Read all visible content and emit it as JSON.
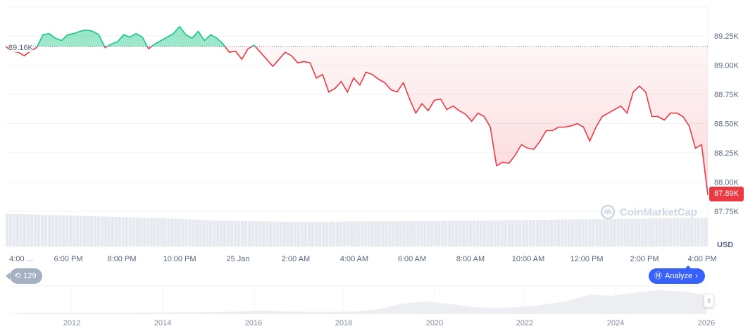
{
  "chart_data": {
    "type": "line",
    "currency": "USD",
    "baseline_label": "89.16K",
    "baseline": 89.16,
    "last_price_label": "87.89K",
    "y_unit": "K USD",
    "ylim": [
      87.65,
      89.45
    ],
    "y_ticks": [
      {
        "value": 89.25,
        "label": "89.25K"
      },
      {
        "value": 89.0,
        "label": "89.00K"
      },
      {
        "value": 88.75,
        "label": "88.75K"
      },
      {
        "value": 88.5,
        "label": "88.50K"
      },
      {
        "value": 88.25,
        "label": "88.25K"
      },
      {
        "value": 88.0,
        "label": "88.00K"
      },
      {
        "value": 87.75,
        "label": "87.75K"
      }
    ],
    "x_ticks": [
      "4:00 ...",
      "6:00 PM",
      "8:00 PM",
      "10:00 PM",
      "25 Jan",
      "2:00 AM",
      "4:00 AM",
      "6:00 AM",
      "8:00 AM",
      "10:00 AM",
      "12:00 PM",
      "2:00 PM",
      "4:00 PM"
    ],
    "prices": [
      89.16,
      89.12,
      89.11,
      89.08,
      89.12,
      89.15,
      89.26,
      89.27,
      89.23,
      89.21,
      89.26,
      89.27,
      89.29,
      89.3,
      89.29,
      89.26,
      89.15,
      89.18,
      89.2,
      89.26,
      89.24,
      89.27,
      89.24,
      89.14,
      89.18,
      89.21,
      89.24,
      89.27,
      89.33,
      89.26,
      89.23,
      89.29,
      89.21,
      89.26,
      89.23,
      89.18,
      89.11,
      89.12,
      89.05,
      89.14,
      89.17,
      89.11,
      89.05,
      88.99,
      89.05,
      89.11,
      89.08,
      89.02,
      89.03,
      89.02,
      88.89,
      88.92,
      88.77,
      88.8,
      88.86,
      88.77,
      88.89,
      88.83,
      88.94,
      88.92,
      88.88,
      88.85,
      88.79,
      88.77,
      88.85,
      88.71,
      88.59,
      88.67,
      88.61,
      88.7,
      88.71,
      88.62,
      88.65,
      88.61,
      88.58,
      88.52,
      88.59,
      88.56,
      88.47,
      88.14,
      88.17,
      88.16,
      88.23,
      88.32,
      88.29,
      88.28,
      88.35,
      88.44,
      88.44,
      88.47,
      88.47,
      88.48,
      88.5,
      88.47,
      88.35,
      88.47,
      88.56,
      88.59,
      88.62,
      88.65,
      88.59,
      88.77,
      88.82,
      88.77,
      88.56,
      88.56,
      88.53,
      88.59,
      88.59,
      88.56,
      88.48,
      88.29,
      88.32,
      87.89
    ],
    "volume_relative": [
      0.95,
      0.9,
      0.85,
      0.8,
      0.75,
      0.7,
      0.62,
      0.58,
      0.55,
      0.55,
      0.55,
      0.56,
      0.57,
      0.58,
      0.6,
      0.62,
      0.64,
      0.66,
      0.68,
      0.7,
      0.72,
      0.74
    ],
    "navigator": {
      "x_ticks": [
        "2012",
        "2014",
        "2016",
        "2018",
        "2020",
        "2022",
        "2024",
        "2026"
      ],
      "relative_values": [
        0,
        0,
        0,
        0,
        0,
        0.01,
        0.01,
        0.02,
        0.03,
        0.05,
        0.1,
        0.05,
        0.04,
        0.04,
        0.05,
        0.15,
        0.4,
        0.5,
        0.4,
        0.25,
        0.2,
        0.25,
        0.35,
        0.5,
        0.8,
        0.75,
        0.9,
        1.0,
        0.95,
        0.8
      ]
    },
    "colors": {
      "up": "#16c784",
      "down": "#ea3943",
      "grid": "#eff2f5",
      "volume": "#e6e9ef"
    }
  },
  "ui": {
    "currency_label": "USD",
    "events_count": "129",
    "analyze_label": "Analyze",
    "watermark": "CoinMarketCap",
    "nav_handle": "II"
  }
}
